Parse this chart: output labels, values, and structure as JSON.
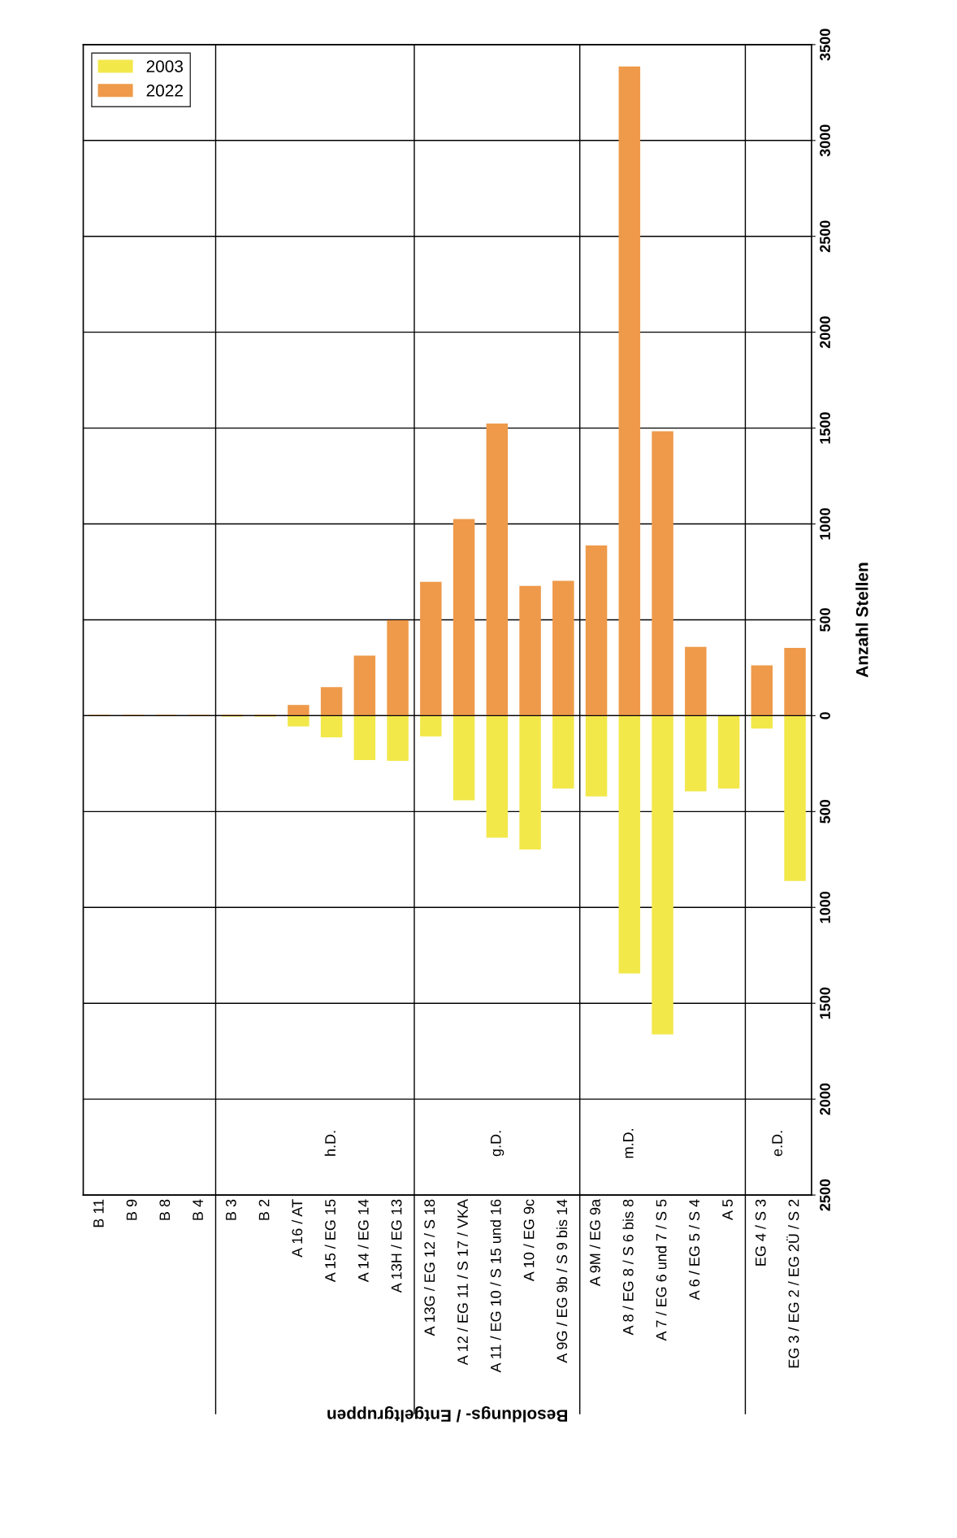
{
  "chart_data": {
    "type": "bar",
    "xlabel": "Besoldungs- / Entgeltgruppen",
    "ylabel": "Anzahl Stellen",
    "categories": [
      "B 11",
      "B 9",
      "B 8",
      "B 4",
      "B 3",
      "B 2",
      "A 16 / AT",
      "A 15 / EG 15",
      "A 14 / EG 14",
      "A 13H / EG 13",
      "A 13G / EG 12 / S 18",
      "A 12 / EG 11 / S 17 / VKA",
      "A 11 / EG 10 / S 15 und 16",
      "A 10 / EG 9c",
      "A 9G / EG 9b / S 9 bis 14",
      "A 9M / EG 9a",
      "A 8 / EG 8 / S 6 bis 8",
      "A 7 / EG 6 und 7 / S 5",
      "A 6 / EG 5 / S 4",
      "A 5",
      "EG 4 / S 3",
      "EG 3 / EG 2 / EG 2Ü / S 2"
    ],
    "series": [
      {
        "name": "2003",
        "color": "#f2e84a",
        "values": [
          null,
          null,
          null,
          null,
          -5,
          -5,
          -56,
          -113,
          -231,
          -236,
          -108,
          -441,
          -636,
          -698,
          -380,
          -421,
          -1344,
          -1662,
          -395,
          -380,
          -67,
          -862
        ]
      },
      {
        "name": "2022",
        "color": "#ee9a4a",
        "values": [
          5,
          5,
          5,
          5,
          5,
          5,
          56,
          149,
          313,
          498,
          698,
          1026,
          1524,
          677,
          703,
          888,
          3386,
          1483,
          359,
          null,
          262,
          354
        ]
      }
    ],
    "ylim": [
      -2500,
      3500
    ],
    "yticks": [
      {
        "value": -2500,
        "label": "2500"
      },
      {
        "value": -2000,
        "label": "2000"
      },
      {
        "value": -1500,
        "label": "1500"
      },
      {
        "value": -1000,
        "label": "1000"
      },
      {
        "value": -500,
        "label": "500"
      },
      0,
      500,
      1000,
      1500,
      2000,
      2500,
      3000,
      3500
    ],
    "grid": "y",
    "legend": "top left",
    "stacked": true,
    "annotations": [
      "h.D.",
      "g.D.",
      "m.D.",
      "e.D."
    ]
  }
}
